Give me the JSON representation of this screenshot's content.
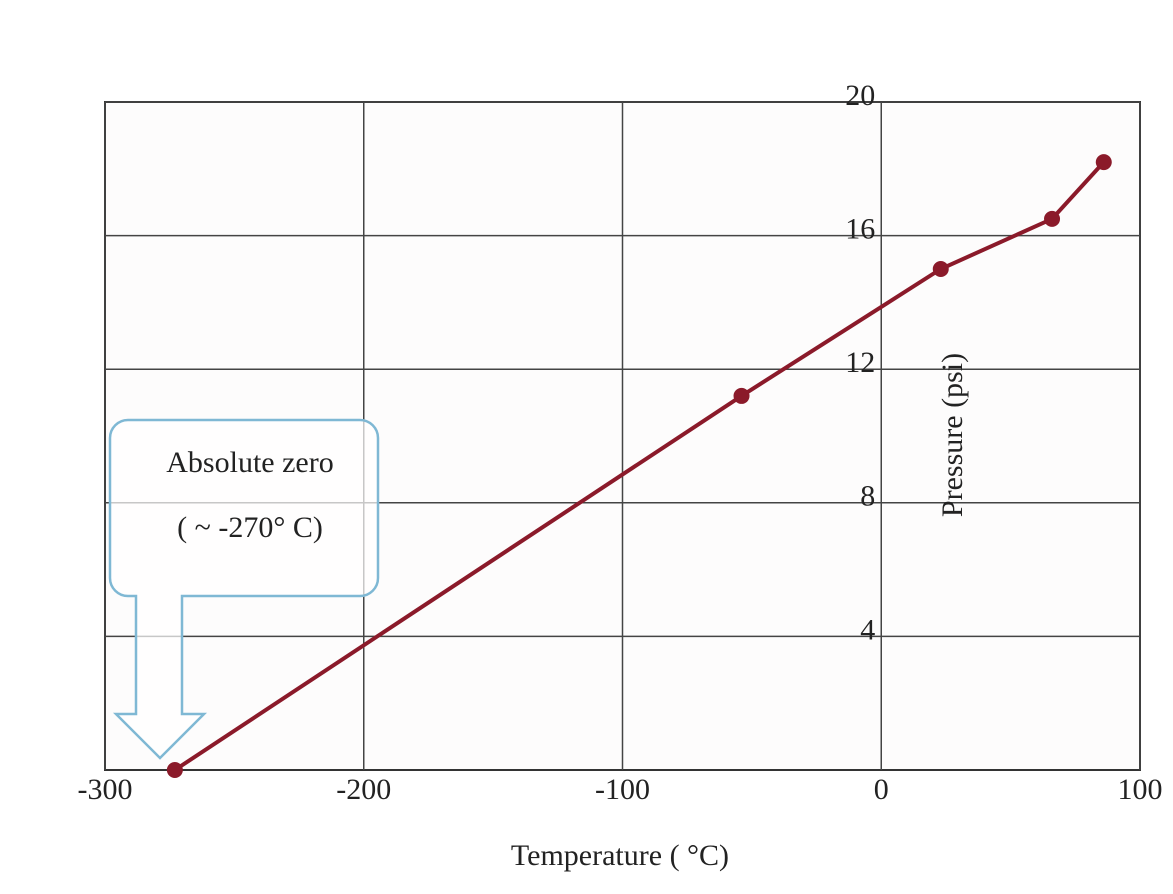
{
  "chart_data": {
    "type": "line",
    "x_label": "Temperature ( °C)",
    "y_label": "Pressure (psi)",
    "annotation": [
      "Absolute zero",
      "( ~ -270° C)"
    ],
    "series": [
      {
        "color": "#8b1a2a",
        "x": [
          -273,
          -54,
          23,
          66,
          86
        ],
        "values": [
          0,
          11.2,
          15.0,
          16.5,
          18.2
        ]
      }
    ],
    "xlim": [
      -300,
      100
    ],
    "xticks": [
      -300,
      -200,
      -100,
      0,
      100
    ],
    "ylim": [
      0,
      20
    ],
    "yticks": [
      4,
      8,
      12,
      16,
      20
    ],
    "grid": true
  }
}
